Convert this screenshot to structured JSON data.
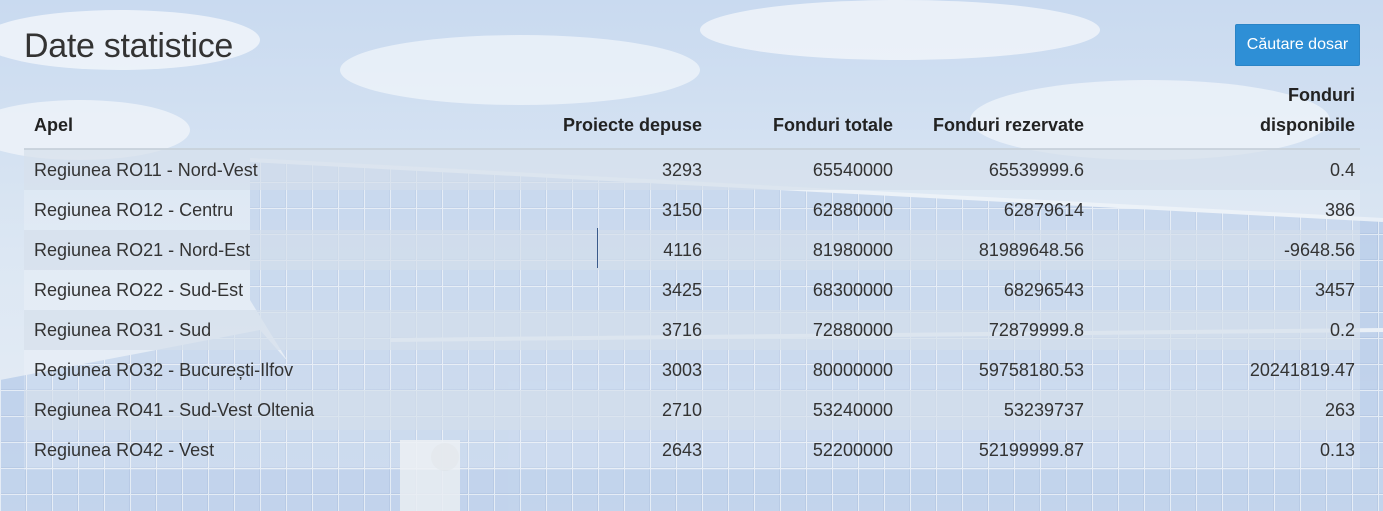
{
  "page": {
    "title": "Date statistice",
    "search_button_label": "Căutare dosar"
  },
  "table": {
    "headers": {
      "apel": "Apel",
      "proiecte_depuse": "Proiecte depuse",
      "fonduri_totale": "Fonduri totale",
      "fonduri_rezervate": "Fonduri rezervate",
      "fonduri_disponibile_line1": "Fonduri",
      "fonduri_disponibile_line2": "disponibile"
    },
    "rows": [
      {
        "apel": "Regiunea RO11 - Nord-Vest",
        "proiecte": "3293",
        "totale": "65540000",
        "rezervate": "65539999.6",
        "disponibile": "0.4"
      },
      {
        "apel": "Regiunea RO12 - Centru",
        "proiecte": "3150",
        "totale": "62880000",
        "rezervate": "62879614",
        "disponibile": "386"
      },
      {
        "apel": "Regiunea RO21 - Nord-Est",
        "proiecte": "4116",
        "totale": "81980000",
        "rezervate": "81989648.56",
        "disponibile": "-9648.56"
      },
      {
        "apel": "Regiunea RO22 - Sud-Est",
        "proiecte": "3425",
        "totale": "68300000",
        "rezervate": "68296543",
        "disponibile": "3457"
      },
      {
        "apel": "Regiunea RO31 - Sud",
        "proiecte": "3716",
        "totale": "72880000",
        "rezervate": "72879999.8",
        "disponibile": "0.2"
      },
      {
        "apel": "Regiunea RO32 - București-Ilfov",
        "proiecte": "3003",
        "totale": "80000000",
        "rezervate": "59758180.53",
        "disponibile": "20241819.47"
      },
      {
        "apel": "Regiunea RO41 - Sud-Vest Oltenia",
        "proiecte": "2710",
        "totale": "53240000",
        "rezervate": "53239737",
        "disponibile": "263"
      },
      {
        "apel": "Regiunea RO42 - Vest",
        "proiecte": "2643",
        "totale": "52200000",
        "rezervate": "52199999.87",
        "disponibile": "0.13"
      }
    ]
  },
  "colors": {
    "button_bg": "#2e8fd6",
    "button_text": "#ffffff",
    "title_text": "#333333"
  }
}
